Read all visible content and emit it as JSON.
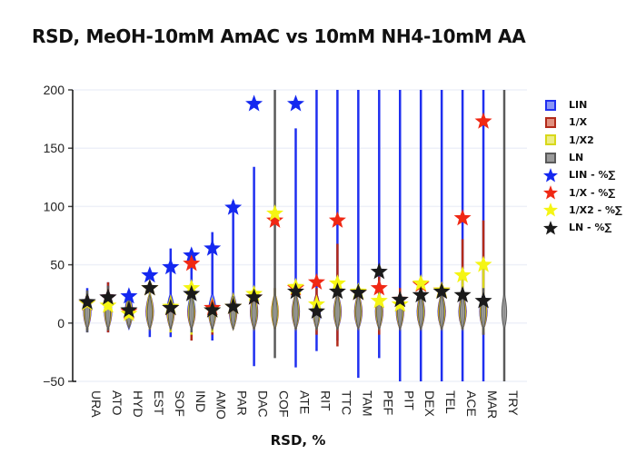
{
  "chart_data": {
    "type": "violin",
    "title": "RSD, MeOH-10mM AmAC vs 10mM NH4-10mM AA",
    "xlabel": "RSD, %",
    "ylabel": "",
    "ylim": [
      -50,
      200
    ],
    "yticks": [
      -50,
      0,
      50,
      100,
      150,
      200
    ],
    "grid": true,
    "legend_position": "right",
    "categories": [
      "URA",
      "ATO",
      "HYD",
      "EST",
      "SOF",
      "IND",
      "AMO",
      "PAR",
      "DAC",
      "COF",
      "ATE",
      "RIT",
      "TTC",
      "TAM",
      "PEF",
      "PIT",
      "DEX",
      "TEL",
      "ACE",
      "MAR",
      "TRY"
    ],
    "violin_series": [
      {
        "name": "LIN",
        "color": "#1f2ff0",
        "fill": "#8b96f5",
        "ranges": [
          [
            -8,
            30
          ],
          [
            -8,
            35
          ],
          [
            -3,
            25
          ],
          [
            -12,
            32
          ],
          [
            -12,
            64
          ],
          [
            -12,
            60
          ],
          [
            -15,
            78
          ],
          [
            -5,
            105
          ],
          [
            -37,
            134
          ],
          [
            null,
            null
          ],
          [
            -38,
            167
          ],
          [
            -24,
            200
          ],
          [
            -15,
            200
          ],
          [
            -47,
            200
          ],
          [
            -30,
            200
          ],
          [
            -50,
            200
          ],
          [
            -50,
            200
          ],
          [
            -50,
            200
          ],
          [
            -50,
            200
          ],
          [
            -50,
            200
          ],
          [
            null,
            null
          ]
        ]
      },
      {
        "name": "1/X",
        "color": "#b22a1a",
        "fill": "#e0907f",
        "ranges": [
          [
            -6,
            25
          ],
          [
            -8,
            35
          ],
          [
            -2,
            20
          ],
          [
            -5,
            25
          ],
          [
            -8,
            20
          ],
          [
            -15,
            20
          ],
          [
            -10,
            18
          ],
          [
            -4,
            22
          ],
          [
            -5,
            25
          ],
          [
            -5,
            30
          ],
          [
            -5,
            30
          ],
          [
            -10,
            30
          ],
          [
            -20,
            68
          ],
          [
            -3,
            30
          ],
          [
            -10,
            40
          ],
          [
            -5,
            30
          ],
          [
            -5,
            32
          ],
          [
            -5,
            30
          ],
          [
            -5,
            72
          ],
          [
            -10,
            88
          ],
          [
            null,
            null
          ]
        ]
      },
      {
        "name": "1/X2",
        "color": "#d8d81a",
        "fill": "#eded85",
        "ranges": [
          [
            -6,
            25
          ],
          [
            -6,
            30
          ],
          [
            -2,
            20
          ],
          [
            -5,
            25
          ],
          [
            -8,
            20
          ],
          [
            -10,
            30
          ],
          [
            -8,
            18
          ],
          [
            -4,
            22
          ],
          [
            -5,
            25
          ],
          [
            -5,
            30
          ],
          [
            -5,
            30
          ],
          [
            -5,
            20
          ],
          [
            -5,
            35
          ],
          [
            -3,
            30
          ],
          [
            -5,
            30
          ],
          [
            -5,
            25
          ],
          [
            -5,
            32
          ],
          [
            -5,
            30
          ],
          [
            -5,
            40
          ],
          [
            -8,
            50
          ],
          [
            null,
            null
          ]
        ]
      },
      {
        "name": "LN",
        "color": "#5a5a5a",
        "fill": "#9a9a9a",
        "ranges": [
          [
            -8,
            28
          ],
          [
            -6,
            32
          ],
          [
            -2,
            18
          ],
          [
            -4,
            22
          ],
          [
            -5,
            18
          ],
          [
            -8,
            22
          ],
          [
            -5,
            15
          ],
          [
            -3,
            20
          ],
          [
            -5,
            22
          ],
          [
            -30,
            200
          ],
          [
            -5,
            28
          ],
          [
            -5,
            15
          ],
          [
            -5,
            30
          ],
          [
            -3,
            28
          ],
          [
            -5,
            35
          ],
          [
            -5,
            25
          ],
          [
            -5,
            30
          ],
          [
            -5,
            28
          ],
          [
            -5,
            30
          ],
          [
            -10,
            30
          ],
          [
            -50,
            200
          ]
        ]
      }
    ],
    "star_series": [
      {
        "name": "LIN - %∑",
        "color": "#1428f0",
        "values": [
          17,
          22,
          23,
          41,
          48,
          58,
          64,
          99,
          188,
          null,
          188,
          null,
          null,
          null,
          null,
          null,
          null,
          null,
          null,
          null,
          null
        ]
      },
      {
        "name": "1/X - %∑",
        "color": "#f02814",
        "values": [
          17,
          22,
          10,
          30,
          13,
          51,
          13,
          14,
          22,
          88,
          30,
          35,
          88,
          26,
          30,
          20,
          33,
          28,
          90,
          173,
          null
        ]
      },
      {
        "name": "1/X2 - %∑",
        "color": "#f5f514",
        "values": [
          17,
          15,
          8,
          30,
          14,
          30,
          11,
          14,
          25,
          94,
          31,
          16,
          34,
          27,
          19,
          16,
          34,
          28,
          41,
          50,
          null
        ]
      },
      {
        "name": "LN - %∑",
        "color": "#1a1a1a",
        "values": [
          18,
          22,
          11,
          30,
          13,
          25,
          11,
          14,
          22,
          null,
          27,
          10,
          27,
          26,
          44,
          20,
          24,
          27,
          24,
          19,
          null
        ]
      }
    ]
  },
  "legend": {
    "items": [
      {
        "label": "LIN",
        "kind": "box",
        "stroke": "#1f2ff0",
        "fill": "#8b96f5"
      },
      {
        "label": "1/X",
        "kind": "box",
        "stroke": "#b22a1a",
        "fill": "#e0907f"
      },
      {
        "label": "1/X2",
        "kind": "box",
        "stroke": "#d8d81a",
        "fill": "#eded85"
      },
      {
        "label": "LN",
        "kind": "box",
        "stroke": "#5a5a5a",
        "fill": "#9a9a9a"
      },
      {
        "label": "LIN - %∑",
        "kind": "star",
        "fill": "#1428f0"
      },
      {
        "label": "1/X - %∑",
        "kind": "star",
        "fill": "#f02814"
      },
      {
        "label": "1/X2 - %∑",
        "kind": "star",
        "fill": "#f5f514"
      },
      {
        "label": "LN - %∑",
        "kind": "star",
        "fill": "#1a1a1a"
      }
    ]
  }
}
